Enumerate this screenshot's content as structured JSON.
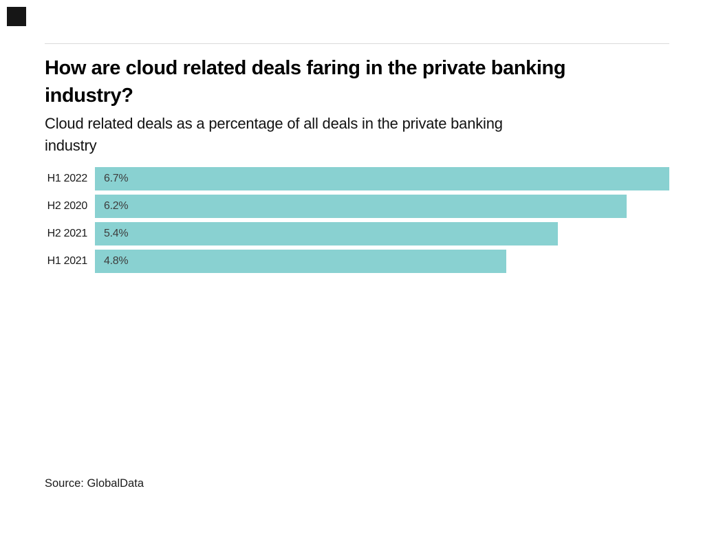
{
  "brand": {
    "mark_color": "#161616"
  },
  "header": {
    "title": "How are cloud related deals faring in the private banking industry?",
    "title_lines": [
      "How are cloud related deals faring in the private banking",
      "industry?"
    ],
    "subtitle": "Cloud related deals as a percentage of all deals in the private banking industry",
    "subtitle_lines": [
      "Cloud related deals as a percentage of all deals in the private banking",
      "industry"
    ]
  },
  "chart_data": {
    "type": "bar",
    "orientation": "horizontal",
    "title": "How are cloud related deals faring in the private banking industry?",
    "subtitle": "Cloud related deals as a percentage of all deals in the private banking industry",
    "categories": [
      "H1 2022",
      "H2 2020",
      "H2 2021",
      "H1 2021"
    ],
    "values": [
      6.7,
      6.2,
      5.4,
      4.8
    ],
    "value_labels": [
      "6.7%",
      "6.2%",
      "5.4%",
      "4.8%"
    ],
    "xlim": [
      0,
      6.7
    ],
    "grid": false,
    "legend": false,
    "bar_color": "#89d1d1",
    "label_color": "#1a1a1a",
    "value_color": "#3d3d3d",
    "divider_color": "#d9d9d9",
    "source": "Source: GlobalData"
  },
  "footer": {
    "source": "Source: GlobalData"
  }
}
